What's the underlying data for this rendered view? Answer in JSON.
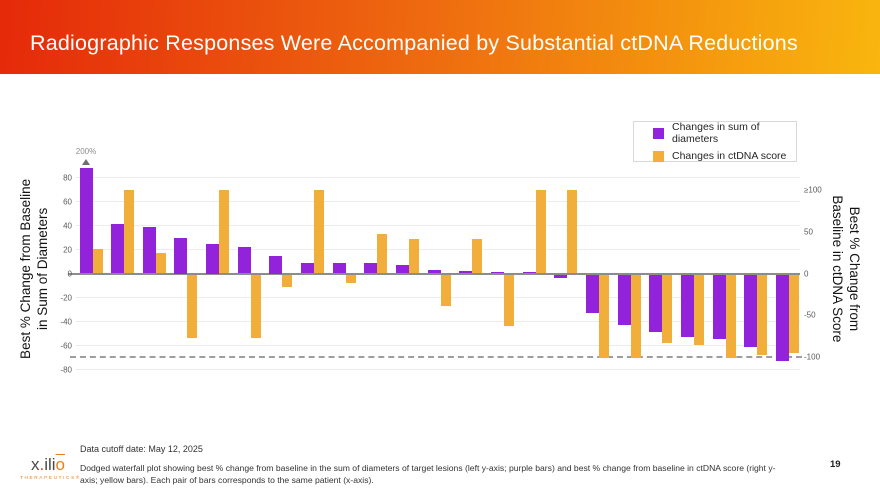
{
  "header": {
    "title": "Radiographic Responses Were Accompanied by Substantial ctDNA Reductions",
    "gradient_left": "#e5290a",
    "gradient_right": "#f9b60e"
  },
  "legend": {
    "items": [
      {
        "label": "Changes in sum of diameters",
        "color": "#9223da"
      },
      {
        "label": "Changes in ctDNA score",
        "color": "#f2ae3b"
      }
    ]
  },
  "chart_data": {
    "type": "bar",
    "subtype": "dodged-waterfall",
    "n_patients": 23,
    "series": [
      {
        "name": "Changes in sum of diameters",
        "axis": "left",
        "color": "#9223da",
        "values": [
          88,
          41,
          39,
          30,
          25,
          22,
          15,
          9,
          9,
          9,
          7,
          3,
          2,
          1,
          1,
          -3,
          -32,
          -42,
          -48,
          -52,
          -54,
          -60,
          -72
        ]
      },
      {
        "name": "Changes in ctDNA score",
        "axis": "right",
        "color": "#f2ae3b",
        "values": [
          29,
          100,
          25,
          -76,
          100,
          -76,
          -15,
          100,
          -10,
          48,
          41,
          -38,
          41,
          -62,
          100,
          100,
          -100,
          -100,
          -82,
          -85,
          -100,
          -97,
          -95
        ]
      }
    ],
    "left_axis": {
      "label_line1": "Best % Change from Baseline",
      "label_line2": "in Sum of Diameters",
      "tick_values": [
        80,
        60,
        40,
        20,
        0,
        -20,
        -40,
        -60,
        -80
      ],
      "tick_labels": [
        "80",
        "60",
        "40",
        "20",
        "0",
        "-20",
        "-40",
        "-60",
        "-80"
      ],
      "range": [
        -80,
        80
      ]
    },
    "right_axis": {
      "label_line1": "Best % Change from",
      "label_line2": "Baseline in ctDNA Score",
      "tick_values": [
        100,
        50,
        0,
        -50,
        -100
      ],
      "tick_labels": [
        "≥100",
        "50",
        "0",
        "-50",
        "-100"
      ],
      "range": [
        -100,
        100
      ]
    },
    "annotation": {
      "text": "200%",
      "patient_index": 0,
      "meaning": "first purple bar capped; true value 200%"
    },
    "reference_line": {
      "value_right_axis": -100,
      "style": "dashed"
    },
    "grid": true,
    "legend_position": "top-right"
  },
  "footer": {
    "cutoff": "Data cutoff date: May 12, 2025",
    "description": "Dodged waterfall plot showing best % change from baseline in the sum of diameters of target lesions (left y-axis; purple bars) and best % change from baseline in ctDNA score (right y-axis; yellow bars). Each pair of bars corresponds to the same patient (x-axis).",
    "page_number": "19"
  },
  "logo": {
    "part1": "x",
    "dot": ".",
    "part2": "ili",
    "part3": "o",
    "subtext": "THERAPEUTICS®"
  }
}
